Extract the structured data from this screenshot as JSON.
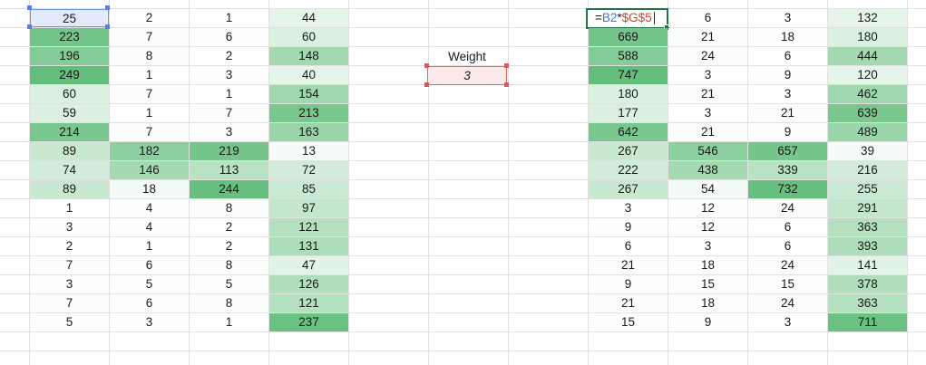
{
  "colors": {
    "scale_low": "#ffffff",
    "scale_high": "#63be7b",
    "selected_cell": "#e3ebfa",
    "weight_fill": "#fbe8e8",
    "weight_border": "#e06666",
    "edit_border": "#217346"
  },
  "left_table": [
    [
      25,
      2,
      1,
      44
    ],
    [
      223,
      7,
      6,
      60
    ],
    [
      196,
      8,
      2,
      148
    ],
    [
      249,
      1,
      3,
      40
    ],
    [
      60,
      7,
      1,
      154
    ],
    [
      59,
      1,
      7,
      213
    ],
    [
      214,
      7,
      3,
      163
    ],
    [
      89,
      182,
      219,
      13
    ],
    [
      74,
      146,
      113,
      72
    ],
    [
      89,
      18,
      244,
      85
    ],
    [
      1,
      4,
      8,
      97
    ],
    [
      3,
      4,
      2,
      121
    ],
    [
      2,
      1,
      2,
      131
    ],
    [
      7,
      6,
      8,
      47
    ],
    [
      3,
      5,
      5,
      126
    ],
    [
      7,
      6,
      8,
      121
    ],
    [
      5,
      3,
      1,
      237
    ]
  ],
  "weight": {
    "label": "Weight",
    "value": "3"
  },
  "formula": {
    "eq": "=",
    "ref1": "B2",
    "op": "*",
    "ref2": "$G$5"
  },
  "right_table": [
    [
      null,
      6,
      3,
      132
    ],
    [
      669,
      21,
      18,
      180
    ],
    [
      588,
      24,
      6,
      444
    ],
    [
      747,
      3,
      9,
      120
    ],
    [
      180,
      21,
      3,
      462
    ],
    [
      177,
      3,
      21,
      639
    ],
    [
      642,
      21,
      9,
      489
    ],
    [
      267,
      546,
      657,
      39
    ],
    [
      222,
      438,
      339,
      216
    ],
    [
      267,
      54,
      732,
      255
    ],
    [
      3,
      12,
      24,
      291
    ],
    [
      9,
      12,
      6,
      363
    ],
    [
      6,
      3,
      6,
      393
    ],
    [
      21,
      18,
      24,
      141
    ],
    [
      9,
      15,
      15,
      378
    ],
    [
      21,
      18,
      24,
      363
    ],
    [
      15,
      9,
      3,
      711
    ]
  ]
}
